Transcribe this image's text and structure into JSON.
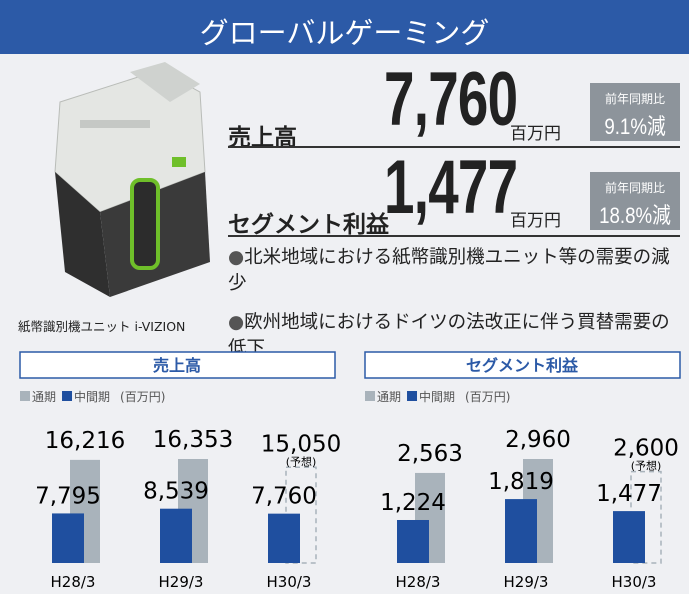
{
  "header": {
    "title": "グローバルゲーミング"
  },
  "image_caption": "紙幣識別機ユニット i-VIZION",
  "metrics": [
    {
      "label": "売上高",
      "value": "7,760",
      "unit": "百万円",
      "change_label": "前年同期比",
      "change": "9.1%減"
    },
    {
      "label": "セグメント利益",
      "value": "1,477",
      "unit": "百万円",
      "change_label": "前年同期比",
      "change": "18.8%減"
    }
  ],
  "bullets": [
    "北米地域における紙幣識別機ユニット等の需要の減少",
    "欧州地域におけるドイツの法改正に伴う買替需要の低下"
  ],
  "chart_data": [
    {
      "type": "bar",
      "title": "売上高",
      "unit_note": "(百万円)",
      "categories": [
        "H28/3",
        "H29/3",
        "H30/3"
      ],
      "series": [
        {
          "name": "通期",
          "color": "#a9b3bb",
          "values": [
            16216,
            16353,
            15050
          ],
          "value_labels": [
            "16,216",
            "16,353",
            "15,050"
          ]
        },
        {
          "name": "中間期",
          "color": "#1f4f9f",
          "values": [
            7795,
            8539,
            7760
          ],
          "value_labels": [
            "7,795",
            "8,539",
            "7,760"
          ]
        }
      ],
      "annotation": "(予想)",
      "annotation_category": "H30/3"
    },
    {
      "type": "bar",
      "title": "セグメント利益",
      "unit_note": "(百万円)",
      "categories": [
        "H28/3",
        "H29/3",
        "H30/3"
      ],
      "series": [
        {
          "name": "通期",
          "color": "#a9b3bb",
          "values": [
            2563,
            2960,
            2600
          ],
          "value_labels": [
            "2,563",
            "2,960",
            "2,600"
          ]
        },
        {
          "name": "中間期",
          "color": "#1f4f9f",
          "values": [
            1224,
            1819,
            1477
          ],
          "value_labels": [
            "1,224",
            "1,819",
            "1,477"
          ]
        }
      ],
      "annotation": "(予想)",
      "annotation_category": "H30/3"
    }
  ]
}
